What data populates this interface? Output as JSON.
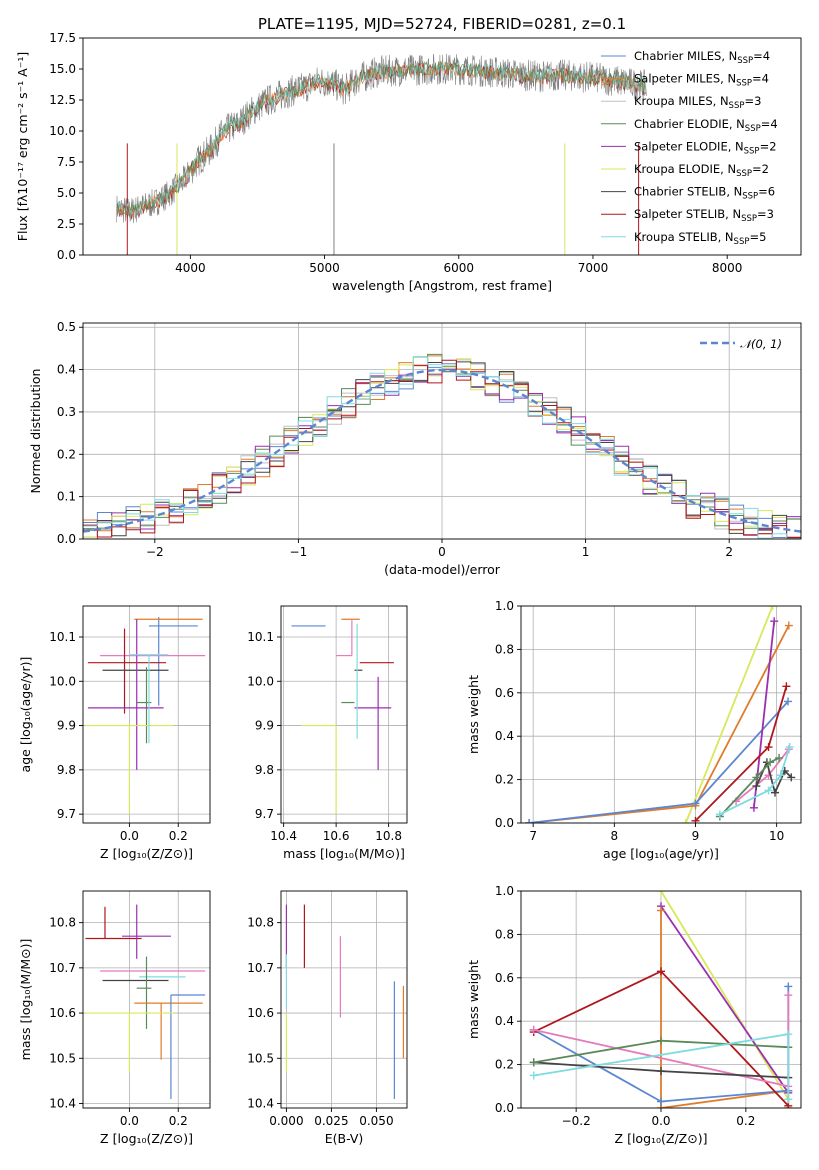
{
  "figure": {
    "title": "PLATE=1195, MJD=52724, FIBERID=0281, z=0.1"
  },
  "colors": {
    "data_spectrum": "#808080",
    "cm": "#5b86d1",
    "sm": "#e07b2a",
    "km": "#c0c0c0",
    "ce": "#5a8a5a",
    "se": "#9c2fb0",
    "ke": "#d9e85a",
    "cs": "#444444",
    "ss": "#b0171c",
    "ks": "#7fdbe0",
    "pink": "#e57bbd",
    "normal": "#5b86d1"
  },
  "chart_data": [
    {
      "id": "spectrum",
      "type": "line",
      "xlabel": "wavelength [Angstrom, rest frame]",
      "ylabel": "Flux [fλ10⁻¹⁷ erg cm⁻² s⁻¹ A⁻¹]",
      "xlim": [
        3200,
        8550
      ],
      "ylim": [
        0,
        17.5
      ],
      "xticks": [
        "4000",
        "5000",
        "6000",
        "7000",
        "8000"
      ],
      "yticks": [
        "0.0",
        "2.5",
        "5.0",
        "7.5",
        "10.0",
        "12.5",
        "15.0",
        "17.5"
      ],
      "grid": false,
      "legend_position": "right",
      "continuum": {
        "x": [
          3450,
          3550,
          3650,
          3750,
          3850,
          3950,
          4050,
          4150,
          4250,
          4350,
          4450,
          4550,
          4650,
          4750,
          4850,
          4950,
          5050,
          5150,
          5250,
          5400,
          5600,
          5800,
          6000,
          6200,
          6400,
          6600,
          6800,
          7000,
          7200,
          7400
        ],
        "y": [
          3.8,
          3.5,
          3.9,
          4.3,
          5.0,
          6.0,
          7.5,
          8.5,
          10.0,
          10.5,
          11.5,
          12.3,
          12.8,
          13.2,
          13.5,
          14.0,
          13.9,
          13.3,
          14.2,
          14.8,
          14.9,
          15.0,
          15.0,
          14.8,
          14.6,
          14.4,
          14.5,
          14.3,
          14.0,
          13.6
        ]
      },
      "legend": [
        {
          "key": "cm",
          "label": "Chabrier MILES, N",
          "sub": "SSP",
          "value": "=4"
        },
        {
          "key": "sm",
          "label": "Salpeter MILES, N",
          "sub": "SSP",
          "value": "=4"
        },
        {
          "key": "km",
          "label": "Kroupa MILES, N",
          "sub": "SSP",
          "value": "=3"
        },
        {
          "key": "ce",
          "label": "Chabrier ELODIE, N",
          "sub": "SSP",
          "value": "=4"
        },
        {
          "key": "se",
          "label": "Salpeter ELODIE, N",
          "sub": "SSP",
          "value": "=2"
        },
        {
          "key": "ke",
          "label": "Kroupa ELODIE, N",
          "sub": "SSP",
          "value": "=2"
        },
        {
          "key": "cs",
          "label": "Chabrier STELIB, N",
          "sub": "SSP",
          "value": "=6"
        },
        {
          "key": "ss",
          "label": "Salpeter STELIB, N",
          "sub": "SSP",
          "value": "=3"
        },
        {
          "key": "ks",
          "label": "Kroupa STELIB, N",
          "sub": "SSP",
          "value": "=5"
        }
      ]
    },
    {
      "id": "residuals",
      "type": "line",
      "xlabel": "(data-model)/error",
      "ylabel": "Normed distribution",
      "xlim": [
        -2.5,
        2.5
      ],
      "ylim": [
        0,
        0.51
      ],
      "xticks": [
        "−2",
        "−1",
        "0",
        "1",
        "2"
      ],
      "yticks": [
        "0.0",
        "0.1",
        "0.2",
        "0.3",
        "0.4",
        "0.5"
      ],
      "grid": true,
      "legend": [
        {
          "key": "normal",
          "label": "𝒩(0, 1)"
        }
      ],
      "legend_position": "top-right",
      "bin_width": 0.1,
      "series_keys": [
        "cm",
        "sm",
        "km",
        "ce",
        "se",
        "ke",
        "cs",
        "ss",
        "ks"
      ]
    },
    {
      "id": "age_vs_Z",
      "type": "scatter",
      "xlabel": "Z [log₁₀(Z/Z⊙)]",
      "ylabel": "age  [log₁₀(age/yr)]",
      "xlim": [
        -0.19,
        0.33
      ],
      "ylim": [
        9.68,
        10.17
      ],
      "xticks": [
        "0.0",
        "0.2"
      ],
      "yticks": [
        "9.7",
        "9.8",
        "9.9",
        "10.0",
        "10.1"
      ],
      "grid": true,
      "points": [
        {
          "key": "cm",
          "x": 0.12,
          "y": 10.125,
          "xerr": [
            0.04,
            0.16
          ],
          "yerr": [
            0.18,
            0.02
          ]
        },
        {
          "key": "sm",
          "x": 0.13,
          "y": 10.14,
          "xerr": [
            0.11,
            0.17
          ],
          "yerr": [
            0.0,
            0.0
          ]
        },
        {
          "key": "pink",
          "x": 0.1,
          "y": 10.058,
          "xerr": [
            0.22,
            0.21
          ],
          "yerr": [
            0.0,
            0.0
          ]
        },
        {
          "key": "ss",
          "x": -0.02,
          "y": 10.042,
          "xerr": [
            0.15,
            0.17
          ],
          "yerr": [
            0.115,
            0.077
          ]
        },
        {
          "key": "cs",
          "x": -0.02,
          "y": 10.025,
          "xerr": [
            0.09,
            0.18
          ],
          "yerr": [
            0.0,
            0.0
          ]
        },
        {
          "key": "ce",
          "x": 0.07,
          "y": 9.952,
          "xerr": [
            0.04,
            0.02
          ],
          "yerr": [
            0.092,
            0.08
          ]
        },
        {
          "key": "se",
          "x": 0.03,
          "y": 9.94,
          "xerr": [
            0.2,
            0.11
          ],
          "yerr": [
            0.14,
            0.2
          ]
        },
        {
          "key": "ke",
          "x": 0.0,
          "y": 9.9,
          "xerr": [
            0.18,
            0.18
          ],
          "yerr": [
            0.2,
            0.0
          ]
        },
        {
          "key": "ks",
          "x": 0.08,
          "y": 10.06,
          "xerr": [
            0.08,
            0.08
          ],
          "yerr": [
            0.2,
            0.0
          ]
        }
      ]
    },
    {
      "id": "age_vs_mass",
      "type": "scatter",
      "xlabel": "mass [log₁₀(M/M⊙)]",
      "xlim": [
        10.39,
        10.87
      ],
      "ylim": [
        9.68,
        10.17
      ],
      "xticks": [
        "10.4",
        "10.6",
        "10.8"
      ],
      "yticks": [
        "9.7",
        "9.8",
        "9.9",
        "10.0",
        "10.1"
      ],
      "grid": true,
      "points": [
        {
          "key": "cm",
          "x": 10.56,
          "y": 10.125,
          "xerr": [
            0.13,
            0.0
          ],
          "yerr": [
            0.0,
            0.0
          ]
        },
        {
          "key": "sm",
          "x": 10.62,
          "y": 10.14,
          "xerr": [
            0.0,
            0.07
          ],
          "yerr": [
            0.0,
            0.0
          ]
        },
        {
          "key": "pink",
          "x": 10.66,
          "y": 10.058,
          "xerr": [
            0.06,
            0.0
          ],
          "yerr": [
            0.0,
            0.08
          ]
        },
        {
          "key": "ss",
          "x": 10.76,
          "y": 10.042,
          "xerr": [
            0.07,
            0.06
          ],
          "yerr": [
            0.0,
            0.0
          ]
        },
        {
          "key": "cs",
          "x": 10.67,
          "y": 10.025,
          "xerr": [
            0.0,
            0.03
          ],
          "yerr": [
            0.0,
            0.0
          ]
        },
        {
          "key": "ce",
          "x": 10.66,
          "y": 9.952,
          "xerr": [
            0.04,
            0.01
          ],
          "yerr": [
            0.0,
            0.0
          ]
        },
        {
          "key": "se",
          "x": 10.76,
          "y": 9.94,
          "xerr": [
            0.09,
            0.05
          ],
          "yerr": [
            0.14,
            0.07
          ]
        },
        {
          "key": "ke",
          "x": 10.6,
          "y": 9.9,
          "xerr": [
            0.13,
            0.0
          ],
          "yerr": [
            0.2,
            0.0
          ]
        },
        {
          "key": "ks",
          "x": 10.68,
          "y": 10.03,
          "xerr": [
            0.0,
            0.0
          ],
          "yerr": [
            0.16,
            0.1
          ]
        }
      ]
    },
    {
      "id": "weight_vs_age",
      "type": "line",
      "xlabel": "age  [log₁₀(age/yr)]",
      "ylabel": "mass weight",
      "xlim": [
        6.85,
        10.3
      ],
      "ylim": [
        0,
        1.0
      ],
      "xticks": [
        "7",
        "8",
        "9",
        "10"
      ],
      "yticks": [
        "0.0",
        "0.2",
        "0.4",
        "0.6",
        "0.8",
        "1.0"
      ],
      "grid": true,
      "series": [
        {
          "key": "ke",
          "x": [
            8.88,
            9.95
          ],
          "y": [
            0.0,
            1.0
          ]
        },
        {
          "key": "sm",
          "x": [
            6.95,
            9.0,
            10.15
          ],
          "y": [
            0.0,
            0.08,
            0.91
          ]
        },
        {
          "key": "cm",
          "x": [
            6.95,
            9.0,
            10.14
          ],
          "y": [
            0.0,
            0.09,
            0.56
          ]
        },
        {
          "key": "se",
          "x": [
            9.72,
            9.97
          ],
          "y": [
            0.07,
            0.93
          ]
        },
        {
          "key": "ss",
          "x": [
            9.0,
            9.9,
            10.12
          ],
          "y": [
            0.01,
            0.35,
            0.63
          ]
        },
        {
          "key": "pink",
          "x": [
            9.5,
            9.9,
            10.15
          ],
          "y": [
            0.1,
            0.22,
            0.34
          ]
        },
        {
          "key": "cs",
          "x": [
            9.75,
            9.88,
            9.98,
            10.1,
            10.18
          ],
          "y": [
            0.17,
            0.28,
            0.14,
            0.24,
            0.21
          ]
        },
        {
          "key": "ce",
          "x": [
            9.3,
            9.75,
            9.92,
            10.03
          ],
          "y": [
            0.03,
            0.21,
            0.28,
            0.3
          ]
        },
        {
          "key": "ks",
          "x": [
            9.3,
            9.9,
            10.05,
            10.16
          ],
          "y": [
            0.04,
            0.15,
            0.22,
            0.35
          ]
        }
      ]
    },
    {
      "id": "mass_vs_Z",
      "type": "scatter",
      "xlabel": "Z [log₁₀(Z/Z⊙)]",
      "ylabel": "mass [log₁₀(M/M⊙)]",
      "xlim": [
        -0.19,
        0.33
      ],
      "ylim": [
        10.39,
        10.87
      ],
      "xticks": [
        "0.0",
        "0.2"
      ],
      "yticks": [
        "10.4",
        "10.5",
        "10.6",
        "10.7",
        "10.8"
      ],
      "grid": true,
      "points": [
        {
          "key": "ss",
          "x": -0.1,
          "y": 10.765,
          "xerr": [
            0.08,
            0.15
          ],
          "yerr": [
            0.0,
            0.07
          ]
        },
        {
          "key": "se",
          "x": 0.03,
          "y": 10.77,
          "xerr": [
            0.06,
            0.14
          ],
          "yerr": [
            0.05,
            0.07
          ]
        },
        {
          "key": "pink",
          "x": 0.1,
          "y": 10.693,
          "xerr": [
            0.22,
            0.21
          ],
          "yerr": [
            0.0,
            0.0
          ]
        },
        {
          "key": "ks",
          "x": 0.08,
          "y": 10.68,
          "xerr": [
            0.04,
            0.15
          ],
          "yerr": [
            0.0,
            0.0
          ]
        },
        {
          "key": "cs",
          "x": -0.02,
          "y": 10.672,
          "xerr": [
            0.09,
            0.18
          ],
          "yerr": [
            0.0,
            0.0
          ]
        },
        {
          "key": "ce",
          "x": 0.07,
          "y": 10.655,
          "xerr": [
            0.04,
            0.02
          ],
          "yerr": [
            0.09,
            0.07
          ]
        },
        {
          "key": "sm",
          "x": 0.13,
          "y": 10.622,
          "xerr": [
            0.11,
            0.17
          ],
          "yerr": [
            0.125,
            0.0
          ]
        },
        {
          "key": "cm",
          "x": 0.17,
          "y": 10.64,
          "xerr": [
            0.0,
            0.14
          ],
          "yerr": [
            0.23,
            0.0
          ]
        },
        {
          "key": "ke",
          "x": 0.0,
          "y": 10.6,
          "xerr": [
            0.18,
            0.18
          ],
          "yerr": [
            0.13,
            0.0
          ]
        }
      ]
    },
    {
      "id": "mass_vs_ebv",
      "type": "scatter",
      "xlabel": "E(B-V)",
      "xlim": [
        -0.003,
        0.067
      ],
      "ylim": [
        10.39,
        10.87
      ],
      "xticks": [
        "0.000",
        "0.025",
        "0.050"
      ],
      "yticks": [
        "10.4",
        "10.5",
        "10.6",
        "10.7",
        "10.8"
      ],
      "grid": true,
      "points": [
        {
          "key": "se",
          "x": 0.0,
          "y": 10.77,
          "yerr": [
            0.07,
            0.07
          ]
        },
        {
          "key": "ss",
          "x": 0.01,
          "y": 10.77,
          "yerr": [
            0.07,
            0.07
          ]
        },
        {
          "key": "pink",
          "x": 0.03,
          "y": 10.68,
          "yerr": [
            0.09,
            0.09
          ]
        },
        {
          "key": "ks",
          "x": 0.0,
          "y": 10.67,
          "yerr": [
            0.06,
            0.06
          ]
        },
        {
          "key": "ke",
          "x": 0.0,
          "y": 10.6,
          "yerr": [
            0.13,
            0.0
          ]
        },
        {
          "key": "cm",
          "x": 0.06,
          "y": 10.54,
          "yerr": [
            0.13,
            0.13
          ]
        },
        {
          "key": "sm",
          "x": 0.065,
          "y": 10.58,
          "yerr": [
            0.08,
            0.08
          ]
        }
      ]
    },
    {
      "id": "weight_vs_Z",
      "type": "line",
      "xlabel": "Z [log₁₀(Z/Z⊙)]",
      "ylabel": "mass weight",
      "xlim": [
        -0.33,
        0.33
      ],
      "ylim": [
        0,
        1.0
      ],
      "xticks": [
        "−0.2",
        "0.0",
        "0.2"
      ],
      "yticks": [
        "0.0",
        "0.2",
        "0.4",
        "0.6",
        "0.8",
        "1.0"
      ],
      "grid": true,
      "series": [
        {
          "key": "ke",
          "x": [
            0.0,
            0.3
          ],
          "y": [
            1.0,
            0.04
          ]
        },
        {
          "key": "se",
          "x": [
            0.0,
            0.3
          ],
          "y": [
            0.93,
            0.07
          ]
        },
        {
          "key": "sm",
          "x": [
            0.0,
            0.0,
            0.3,
            0.3
          ],
          "y": [
            0.91,
            0.0,
            0.08,
            0.0
          ]
        },
        {
          "key": "cm",
          "x": [
            -0.3,
            0.0,
            0.3,
            0.3
          ],
          "y": [
            0.36,
            0.03,
            0.08,
            0.56
          ]
        },
        {
          "key": "ss",
          "x": [
            -0.3,
            0.0,
            0.3
          ],
          "y": [
            0.35,
            0.63,
            0.01
          ]
        },
        {
          "key": "pink",
          "x": [
            -0.3,
            0.3,
            0.3
          ],
          "y": [
            0.36,
            0.1,
            0.52
          ]
        },
        {
          "key": "cs",
          "x": [
            -0.3,
            0.0,
            0.3
          ],
          "y": [
            0.21,
            0.17,
            0.14
          ]
        },
        {
          "key": "ce",
          "x": [
            -0.3,
            0.0,
            0.3
          ],
          "y": [
            0.21,
            0.31,
            0.28
          ]
        },
        {
          "key": "ks",
          "x": [
            -0.3,
            0.3,
            0.3
          ],
          "y": [
            0.15,
            0.34,
            0.04
          ]
        }
      ]
    }
  ]
}
